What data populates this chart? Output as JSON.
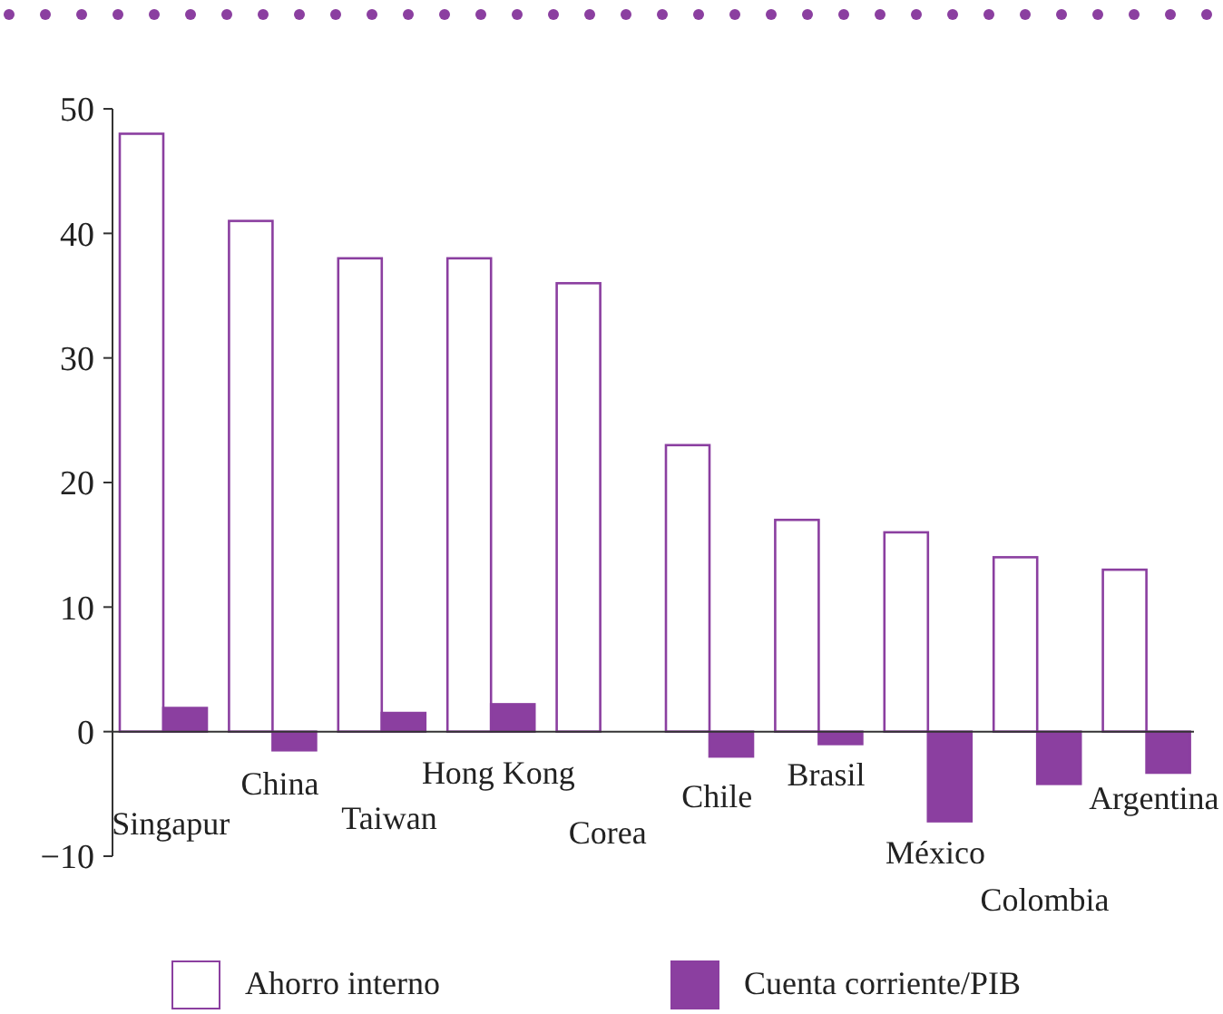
{
  "chart_data": {
    "type": "bar",
    "categories": [
      "Singapur",
      "China",
      "Taiwan",
      "Hong Kong",
      "Corea",
      "Chile",
      "Brasil",
      "México",
      "Colombia",
      "Argentina"
    ],
    "series": [
      {
        "name": "Ahorro interno",
        "color": "#ffffff",
        "values": [
          48,
          41,
          38,
          38,
          36,
          23,
          17,
          16,
          14,
          13
        ]
      },
      {
        "name": "Cuenta corriente/PIB",
        "color": "#8b3fa0",
        "values": [
          1.9,
          -1.5,
          1.5,
          2.2,
          null,
          -2,
          -1,
          -7.2,
          -4.2,
          -3.3
        ]
      }
    ],
    "ylim": [
      -10,
      50
    ],
    "yticks": [
      -10,
      0,
      10,
      20,
      30,
      40,
      50
    ],
    "grid": false,
    "legend": "bottom"
  }
}
